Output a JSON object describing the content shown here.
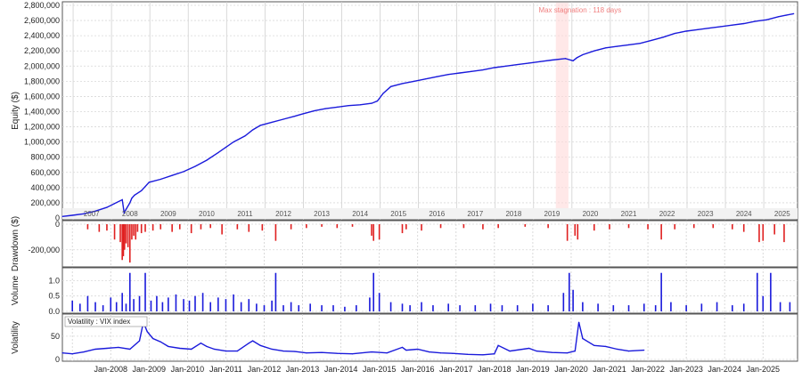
{
  "chart_data": [
    {
      "type": "line",
      "panel": "equity",
      "ylabel": "Equity ($)",
      "ylim": [
        0,
        2800000
      ],
      "yticks": [
        0,
        200000,
        400000,
        600000,
        800000,
        1000000,
        1200000,
        1400000,
        1600000,
        1800000,
        2000000,
        2200000,
        2400000,
        2600000,
        2800000
      ],
      "ytick_labels": [
        "0",
        "200,000",
        "400,000",
        "600,000",
        "800,000",
        "1,000,000",
        "1,200,000",
        "1,400,000",
        "1,600,000",
        "1,800,000",
        "2,000,000",
        "2,200,000",
        "2,400,000",
        "2,600,000",
        "2,800,000"
      ],
      "year_labels": [
        "2007",
        "2008",
        "2009",
        "2010",
        "2011",
        "2012",
        "2013",
        "2014",
        "2015",
        "2016",
        "2017",
        "2018",
        "2019",
        "2020",
        "2021",
        "2022",
        "2023",
        "2024",
        "2025"
      ],
      "annotation": {
        "text": "Max stagnation : 118 days",
        "start": "2019.6",
        "end": "2019.93"
      },
      "grid": true,
      "series": [
        {
          "color": "#1a1adb",
          "x": [
            2006.74,
            2007.0,
            2007.3,
            2007.6,
            2007.9,
            2008.1,
            2008.3,
            2008.35,
            2008.5,
            2008.55,
            2008.62,
            2008.8,
            2009.0,
            2009.3,
            2009.6,
            2009.9,
            2010.2,
            2010.5,
            2010.8,
            2011.0,
            2011.2,
            2011.5,
            2011.7,
            2011.9,
            2012.2,
            2012.5,
            2012.8,
            2013.0,
            2013.3,
            2013.6,
            2013.9,
            2014.2,
            2014.5,
            2014.8,
            2014.95,
            2015.1,
            2015.3,
            2015.6,
            2015.9,
            2016.2,
            2016.5,
            2016.8,
            2017.1,
            2017.4,
            2017.7,
            2018.0,
            2018.3,
            2018.6,
            2018.9,
            2019.2,
            2019.5,
            2019.85,
            2020.05,
            2020.15,
            2020.3,
            2020.6,
            2020.9,
            2021.2,
            2021.5,
            2021.8,
            2022.1,
            2022.4,
            2022.7,
            2023.0,
            2023.3,
            2023.6,
            2023.9,
            2024.2,
            2024.5,
            2024.8,
            2025.1,
            2025.4,
            2025.6,
            2025.8
          ],
          "y": [
            20000,
            35000,
            55000,
            90000,
            140000,
            190000,
            240000,
            70000,
            200000,
            260000,
            300000,
            360000,
            470000,
            510000,
            560000,
            610000,
            680000,
            760000,
            860000,
            930000,
            1000000,
            1080000,
            1160000,
            1220000,
            1260000,
            1300000,
            1340000,
            1370000,
            1410000,
            1440000,
            1460000,
            1480000,
            1490000,
            1510000,
            1540000,
            1640000,
            1730000,
            1770000,
            1800000,
            1830000,
            1860000,
            1890000,
            1910000,
            1930000,
            1950000,
            1980000,
            2000000,
            2020000,
            2040000,
            2060000,
            2080000,
            2100000,
            2070000,
            2110000,
            2150000,
            2200000,
            2240000,
            2260000,
            2280000,
            2300000,
            2340000,
            2380000,
            2430000,
            2460000,
            2480000,
            2500000,
            2520000,
            2540000,
            2560000,
            2590000,
            2610000,
            2650000,
            2670000,
            2690000
          ]
        }
      ]
    },
    {
      "type": "bar",
      "panel": "drawdown",
      "ylabel": "Drawdown ($)",
      "ylim": [
        -320000,
        0
      ],
      "yticks": [
        0,
        -200000
      ],
      "ytick_labels": [
        "0",
        "-200,000"
      ],
      "color": "#e02020",
      "grid": true,
      "x": [
        2007.4,
        2007.7,
        2007.9,
        2008.1,
        2008.25,
        2008.3,
        2008.33,
        2008.36,
        2008.4,
        2008.45,
        2008.5,
        2008.55,
        2008.6,
        2008.65,
        2008.7,
        2008.8,
        2008.9,
        2009.1,
        2009.3,
        2009.6,
        2009.8,
        2010.1,
        2010.35,
        2010.6,
        2010.9,
        2011.3,
        2011.6,
        2011.95,
        2012.3,
        2012.7,
        2013.1,
        2013.5,
        2013.9,
        2014.3,
        2014.8,
        2014.85,
        2015.0,
        2015.6,
        2015.7,
        2016.1,
        2016.6,
        2017.2,
        2017.7,
        2018.1,
        2018.8,
        2019.4,
        2019.9,
        2020.1,
        2020.17,
        2020.6,
        2021.0,
        2021.5,
        2022.0,
        2022.35,
        2022.7,
        2023.2,
        2023.7,
        2024.2,
        2024.5,
        2024.9,
        2025.0,
        2025.3,
        2025.55
      ],
      "values": [
        -40000,
        -60000,
        -50000,
        -120000,
        -140000,
        -280000,
        -250000,
        -200000,
        -150000,
        -180000,
        -300000,
        -120000,
        -90000,
        -120000,
        -60000,
        -70000,
        -60000,
        -50000,
        -40000,
        -60000,
        -40000,
        -70000,
        -40000,
        -30000,
        -80000,
        -40000,
        -60000,
        -50000,
        -130000,
        -40000,
        -30000,
        -20000,
        -30000,
        -20000,
        -90000,
        -130000,
        -120000,
        -70000,
        -40000,
        -50000,
        -30000,
        -30000,
        -40000,
        -30000,
        -20000,
        -30000,
        -130000,
        -90000,
        -120000,
        -50000,
        -40000,
        -30000,
        -40000,
        -120000,
        -40000,
        -30000,
        -30000,
        -40000,
        -60000,
        -140000,
        -130000,
        -80000,
        -140000
      ]
    },
    {
      "type": "bar",
      "panel": "volume",
      "ylabel": "Volume",
      "ylim": [
        0,
        1.3
      ],
      "yticks": [
        0,
        0.5,
        1.0
      ],
      "ytick_labels": [
        "0.0",
        "0.5",
        "1.0"
      ],
      "color": "#1a1adb",
      "grid": true,
      "x": [
        2007.0,
        2007.2,
        2007.4,
        2007.6,
        2007.8,
        2008.0,
        2008.15,
        2008.3,
        2008.4,
        2008.5,
        2008.6,
        2008.75,
        2008.9,
        2009.05,
        2009.2,
        2009.35,
        2009.5,
        2009.7,
        2009.9,
        2010.05,
        2010.2,
        2010.4,
        2010.6,
        2010.8,
        2011.0,
        2011.2,
        2011.4,
        2011.6,
        2011.8,
        2012.0,
        2012.2,
        2012.3,
        2012.5,
        2012.7,
        2012.9,
        2013.2,
        2013.5,
        2013.8,
        2014.1,
        2014.4,
        2014.75,
        2014.85,
        2015.0,
        2015.3,
        2015.6,
        2015.8,
        2016.1,
        2016.4,
        2016.8,
        2017.1,
        2017.5,
        2017.9,
        2018.2,
        2018.6,
        2019.0,
        2019.4,
        2019.8,
        2019.95,
        2020.05,
        2020.3,
        2020.7,
        2021.1,
        2021.5,
        2021.9,
        2022.2,
        2022.35,
        2022.6,
        2023.0,
        2023.4,
        2023.8,
        2024.2,
        2024.5,
        2024.85,
        2025.0,
        2025.2,
        2025.45,
        2025.7
      ],
      "values": [
        0.35,
        0.25,
        0.5,
        0.3,
        0.2,
        0.45,
        0.3,
        0.6,
        0.25,
        1.25,
        0.4,
        0.5,
        1.25,
        0.35,
        0.5,
        0.3,
        0.45,
        0.55,
        0.4,
        0.35,
        0.5,
        0.6,
        0.3,
        0.45,
        0.4,
        0.55,
        0.3,
        0.4,
        0.25,
        0.2,
        0.35,
        1.25,
        0.2,
        0.3,
        0.2,
        0.25,
        0.2,
        0.2,
        0.15,
        0.2,
        0.45,
        1.25,
        0.6,
        0.3,
        0.25,
        0.2,
        0.3,
        0.2,
        0.25,
        0.2,
        0.2,
        0.25,
        0.2,
        0.2,
        0.25,
        0.2,
        0.6,
        1.25,
        0.7,
        0.3,
        0.25,
        0.2,
        0.2,
        0.25,
        0.2,
        1.25,
        0.3,
        0.2,
        0.25,
        0.3,
        0.2,
        0.25,
        1.25,
        0.5,
        1.25,
        0.3,
        0.3
      ]
    },
    {
      "type": "line",
      "panel": "volatility",
      "ylabel": "Volatility",
      "legend": "Volatility : VIX index",
      "ylim": [
        0,
        90
      ],
      "yticks": [
        0,
        50
      ],
      "ytick_labels": [
        "0",
        "50"
      ],
      "xtick_labels": [
        "Jan-2008",
        "Jan-2009",
        "Jan-2010",
        "Jan-2011",
        "Jan-2012",
        "Jan-2013",
        "Jan-2014",
        "Jan-2015",
        "Jan-2016",
        "Jan-2017",
        "Jan-2018",
        "Jan-2019",
        "Jan-2020",
        "Jan-2021",
        "Jan-2022",
        "Jan-2023",
        "Jan-2024",
        "Jan-2025"
      ],
      "grid": true,
      "series": [
        {
          "color": "#1a1adb",
          "x": [
            2006.74,
            2007.0,
            2007.3,
            2007.6,
            2007.9,
            2008.2,
            2008.5,
            2008.75,
            2008.85,
            2008.95,
            2009.1,
            2009.3,
            2009.5,
            2009.8,
            2010.1,
            2010.35,
            2010.5,
            2010.7,
            2011.0,
            2011.3,
            2011.6,
            2011.7,
            2011.9,
            2012.2,
            2012.5,
            2012.8,
            2013.1,
            2013.5,
            2013.9,
            2014.3,
            2014.8,
            2015.2,
            2015.6,
            2015.7,
            2016.0,
            2016.3,
            2016.6,
            2016.9,
            2017.3,
            2017.7,
            2018.0,
            2018.1,
            2018.4,
            2018.9,
            2019.1,
            2019.5,
            2019.9,
            2020.1,
            2020.2,
            2020.3,
            2020.6,
            2020.9,
            2021.2,
            2021.5,
            2021.9
          ],
          "y": [
            14,
            12,
            16,
            22,
            24,
            26,
            22,
            40,
            80,
            60,
            45,
            38,
            28,
            24,
            22,
            35,
            28,
            22,
            18,
            18,
            35,
            40,
            30,
            22,
            18,
            17,
            14,
            15,
            13,
            12,
            16,
            14,
            26,
            20,
            22,
            16,
            14,
            13,
            11,
            10,
            12,
            30,
            18,
            24,
            18,
            15,
            14,
            18,
            80,
            45,
            30,
            28,
            22,
            18,
            20
          ]
        }
      ]
    }
  ]
}
